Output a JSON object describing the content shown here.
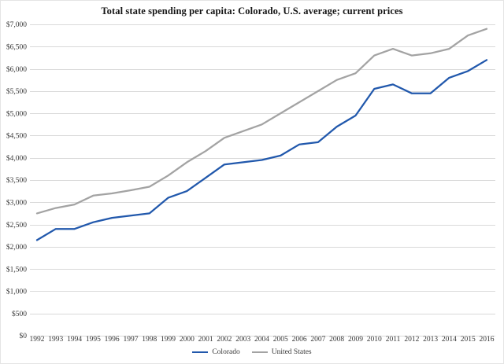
{
  "chart_data": {
    "type": "line",
    "title": "Total state spending per capita: Colorado, U.S. average; current prices",
    "x": [
      "1992",
      "1993",
      "1994",
      "1995",
      "1996",
      "1997",
      "1998",
      "1999",
      "2000",
      "2001",
      "2002",
      "2003",
      "2004",
      "2005",
      "2006",
      "2007",
      "2008",
      "2009",
      "2010",
      "2011",
      "2012",
      "2013",
      "2014",
      "2015",
      "2016"
    ],
    "series": [
      {
        "name": "Colorado",
        "color": "#2158ac",
        "values": [
          2150,
          2400,
          2400,
          2550,
          2650,
          2700,
          2750,
          3100,
          3250,
          3550,
          3850,
          3900,
          3950,
          4050,
          4300,
          4350,
          4700,
          4950,
          5550,
          5650,
          5450,
          5450,
          5800,
          5950,
          6200
        ]
      },
      {
        "name": "United States",
        "color": "#a3a3a3",
        "values": [
          2750,
          2870,
          2950,
          3150,
          3200,
          3270,
          3350,
          3600,
          3900,
          4150,
          4450,
          4600,
          4750,
          5000,
          5250,
          5500,
          5750,
          5900,
          6300,
          6450,
          6300,
          6350,
          6450,
          6750,
          6900
        ]
      }
    ],
    "xlabel": "",
    "ylabel": "",
    "ylim": [
      0,
      7000
    ],
    "ytick_step": 500,
    "ytick_labels": [
      "$0",
      "$500",
      "$1,000",
      "$1,500",
      "$2,000",
      "$2,500",
      "$3,000",
      "$3,500",
      "$4,000",
      "$4,500",
      "$5,000",
      "$5,500",
      "$6,000",
      "$6,500",
      "$7,000"
    ],
    "grid": true,
    "gridline_color": "#d9d9d9",
    "legend_position": "bottom-center"
  }
}
